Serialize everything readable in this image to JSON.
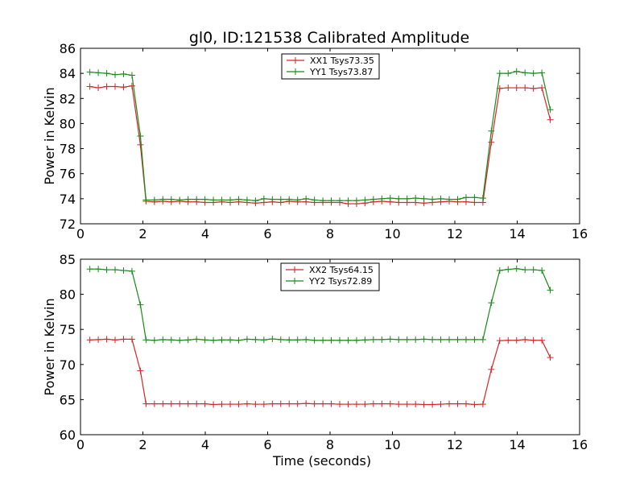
{
  "title": "gl0, ID:121538 Calibrated Amplitude",
  "chart_data": [
    {
      "type": "line",
      "title": "gl0, ID:121538 Calibrated Amplitude",
      "xlabel": "",
      "ylabel": "Power in Kelvin",
      "xlim": [
        0,
        16
      ],
      "ylim": [
        72,
        86
      ],
      "xticks": [
        0,
        2,
        4,
        6,
        8,
        10,
        12,
        14,
        16
      ],
      "yticks": [
        72,
        74,
        76,
        78,
        80,
        82,
        84,
        86
      ],
      "grid": false,
      "legend": "top-center",
      "x": [
        0.3,
        0.57,
        0.84,
        1.11,
        1.38,
        1.65,
        1.92,
        2.1,
        2.37,
        2.64,
        2.91,
        3.18,
        3.45,
        3.72,
        3.99,
        4.26,
        4.53,
        4.8,
        5.07,
        5.34,
        5.61,
        5.88,
        6.15,
        6.42,
        6.69,
        6.96,
        7.23,
        7.5,
        7.77,
        8.04,
        8.31,
        8.58,
        8.85,
        9.12,
        9.39,
        9.66,
        9.93,
        10.2,
        10.47,
        10.74,
        11.01,
        11.28,
        11.55,
        11.82,
        12.09,
        12.36,
        12.63,
        12.9,
        13.17,
        13.44,
        13.71,
        13.98,
        14.25,
        14.52,
        14.79,
        15.06
      ],
      "series": [
        {
          "name": "XX1 Tsys73.35",
          "color": "#d62728",
          "values": [
            82.95,
            82.85,
            82.95,
            82.95,
            82.9,
            83.0,
            78.3,
            73.8,
            73.75,
            73.8,
            73.75,
            73.8,
            73.75,
            73.75,
            73.7,
            73.7,
            73.75,
            73.7,
            73.75,
            73.7,
            73.65,
            73.7,
            73.75,
            73.7,
            73.8,
            73.75,
            73.75,
            73.7,
            73.7,
            73.7,
            73.7,
            73.6,
            73.6,
            73.65,
            73.75,
            73.8,
            73.75,
            73.7,
            73.7,
            73.7,
            73.65,
            73.7,
            73.75,
            73.8,
            73.75,
            73.75,
            73.7,
            73.7,
            78.5,
            82.8,
            82.85,
            82.85,
            82.85,
            82.8,
            82.85,
            80.3
          ]
        },
        {
          "name": "YY1 Tsys73.87",
          "color": "#1a8a1a",
          "values": [
            84.1,
            84.05,
            84.0,
            83.9,
            83.95,
            83.85,
            79.0,
            73.9,
            73.9,
            73.95,
            73.95,
            73.9,
            73.95,
            73.95,
            73.95,
            73.9,
            73.9,
            73.9,
            73.95,
            73.9,
            73.85,
            74.0,
            73.95,
            73.95,
            73.95,
            73.9,
            74.0,
            73.9,
            73.85,
            73.85,
            73.85,
            73.85,
            73.85,
            73.9,
            73.95,
            74.0,
            74.05,
            74.0,
            74.0,
            74.05,
            74.0,
            73.95,
            74.0,
            73.95,
            73.95,
            74.1,
            74.1,
            74.05,
            79.4,
            84.0,
            84.0,
            84.15,
            84.05,
            84.0,
            84.05,
            81.1
          ]
        }
      ]
    },
    {
      "type": "line",
      "title": "",
      "xlabel": "Time (seconds)",
      "ylabel": "Power in Kelvin",
      "xlim": [
        0,
        16
      ],
      "ylim": [
        60,
        85
      ],
      "xticks": [
        0,
        2,
        4,
        6,
        8,
        10,
        12,
        14,
        16
      ],
      "yticks": [
        60,
        65,
        70,
        75,
        80,
        85
      ],
      "grid": false,
      "legend": "top-center",
      "x": [
        0.3,
        0.57,
        0.84,
        1.11,
        1.38,
        1.65,
        1.92,
        2.1,
        2.37,
        2.64,
        2.91,
        3.18,
        3.45,
        3.72,
        3.99,
        4.26,
        4.53,
        4.8,
        5.07,
        5.34,
        5.61,
        5.88,
        6.15,
        6.42,
        6.69,
        6.96,
        7.23,
        7.5,
        7.77,
        8.04,
        8.31,
        8.58,
        8.85,
        9.12,
        9.39,
        9.66,
        9.93,
        10.2,
        10.47,
        10.74,
        11.01,
        11.28,
        11.55,
        11.82,
        12.09,
        12.36,
        12.63,
        12.9,
        13.17,
        13.44,
        13.71,
        13.98,
        14.25,
        14.52,
        14.79,
        15.06
      ],
      "series": [
        {
          "name": "XX2 Tsys64.15",
          "color": "#d62728",
          "values": [
            73.5,
            73.55,
            73.6,
            73.5,
            73.6,
            73.6,
            69.1,
            64.4,
            64.4,
            64.4,
            64.4,
            64.4,
            64.4,
            64.4,
            64.4,
            64.3,
            64.35,
            64.35,
            64.35,
            64.4,
            64.35,
            64.35,
            64.4,
            64.4,
            64.4,
            64.4,
            64.45,
            64.4,
            64.4,
            64.4,
            64.35,
            64.35,
            64.35,
            64.35,
            64.4,
            64.4,
            64.4,
            64.35,
            64.35,
            64.35,
            64.3,
            64.3,
            64.35,
            64.4,
            64.4,
            64.4,
            64.3,
            64.35,
            69.3,
            73.4,
            73.45,
            73.45,
            73.55,
            73.45,
            73.45,
            71.0
          ]
        },
        {
          "name": "YY2 Tsys72.89",
          "color": "#1a8a1a",
          "values": [
            83.6,
            83.6,
            83.5,
            83.5,
            83.4,
            83.3,
            78.5,
            73.5,
            73.45,
            73.55,
            73.5,
            73.45,
            73.5,
            73.6,
            73.5,
            73.45,
            73.5,
            73.5,
            73.45,
            73.6,
            73.55,
            73.5,
            73.65,
            73.55,
            73.5,
            73.5,
            73.55,
            73.45,
            73.45,
            73.45,
            73.45,
            73.45,
            73.45,
            73.5,
            73.55,
            73.55,
            73.6,
            73.55,
            73.55,
            73.55,
            73.6,
            73.55,
            73.55,
            73.55,
            73.55,
            73.55,
            73.55,
            73.55,
            78.8,
            83.4,
            83.55,
            83.65,
            83.5,
            83.5,
            83.4,
            80.6
          ]
        }
      ]
    }
  ]
}
